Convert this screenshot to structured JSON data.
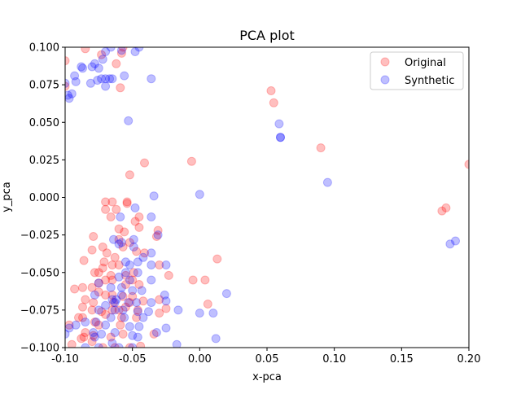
{
  "chart_data": {
    "type": "scatter",
    "title": "PCA plot",
    "xlabel": "x-pca",
    "ylabel": "y_pca",
    "xlim": [
      -0.1,
      0.2
    ],
    "ylim": [
      -0.1,
      0.1
    ],
    "x_ticks": [
      "-0.10",
      "-0.05",
      "0.00",
      "0.05",
      "0.10",
      "0.15",
      "0.20"
    ],
    "y_ticks": [
      "−0.100",
      "−0.075",
      "−0.050",
      "−0.025",
      "0.000",
      "0.025",
      "0.050",
      "0.075",
      "0.100"
    ],
    "x_tick_values": [
      -0.1,
      -0.05,
      0.0,
      0.05,
      0.1,
      0.15,
      0.2
    ],
    "y_tick_values": [
      -0.1,
      -0.075,
      -0.05,
      -0.025,
      0.0,
      0.025,
      0.05,
      0.075,
      0.1
    ],
    "legend_position": "top-right",
    "grid": false,
    "series": [
      {
        "name": "Original",
        "color": "#ff0000",
        "alpha": 0.25,
        "points": [
          [
            -0.1,
            0.091
          ],
          [
            -0.1,
            0.074
          ],
          [
            -0.085,
            0.099
          ],
          [
            -0.058,
            0.096
          ],
          [
            -0.059,
            0.073
          ],
          [
            -0.073,
            0.095
          ],
          [
            -0.057,
            0.1
          ],
          [
            -0.062,
            0.089
          ],
          [
            0.053,
            0.071
          ],
          [
            0.055,
            0.063
          ],
          [
            0.09,
            0.033
          ],
          [
            0.2,
            0.022
          ],
          [
            -0.041,
            0.023
          ],
          [
            -0.006,
            0.024
          ],
          [
            -0.052,
            0.015
          ],
          [
            -0.07,
            -0.003
          ],
          [
            -0.065,
            -0.003
          ],
          [
            -0.054,
            -0.003
          ],
          [
            -0.054,
            -0.004
          ],
          [
            -0.062,
            -0.008
          ],
          [
            -0.07,
            -0.008
          ],
          [
            -0.045,
            -0.013
          ],
          [
            -0.048,
            -0.016
          ],
          [
            -0.066,
            -0.013
          ],
          [
            -0.06,
            -0.021
          ],
          [
            -0.056,
            -0.023
          ],
          [
            -0.045,
            -0.02
          ],
          [
            -0.031,
            -0.022
          ],
          [
            -0.032,
            -0.026
          ],
          [
            -0.079,
            -0.026
          ],
          [
            -0.072,
            -0.033
          ],
          [
            -0.08,
            -0.035
          ],
          [
            -0.06,
            -0.028
          ],
          [
            -0.052,
            -0.03
          ],
          [
            -0.057,
            -0.033
          ],
          [
            -0.047,
            -0.036
          ],
          [
            -0.069,
            -0.037
          ],
          [
            -0.041,
            -0.037
          ],
          [
            -0.086,
            -0.042
          ],
          [
            -0.071,
            -0.043
          ],
          [
            -0.065,
            -0.045
          ],
          [
            -0.063,
            -0.04
          ],
          [
            -0.06,
            -0.045
          ],
          [
            -0.072,
            -0.047
          ],
          [
            -0.075,
            -0.05
          ],
          [
            -0.078,
            -0.05
          ],
          [
            -0.066,
            -0.052
          ],
          [
            -0.055,
            -0.052
          ],
          [
            -0.049,
            -0.05
          ],
          [
            -0.03,
            -0.045
          ],
          [
            -0.023,
            -0.052
          ],
          [
            -0.05,
            -0.055
          ],
          [
            -0.075,
            -0.057
          ],
          [
            -0.065,
            -0.055
          ],
          [
            -0.07,
            -0.055
          ],
          [
            -0.055,
            -0.058
          ],
          [
            -0.045,
            -0.058
          ],
          [
            0.013,
            -0.041
          ],
          [
            -0.005,
            -0.055
          ],
          [
            0.004,
            -0.055
          ],
          [
            -0.093,
            -0.061
          ],
          [
            -0.087,
            -0.06
          ],
          [
            -0.08,
            -0.06
          ],
          [
            -0.075,
            -0.063
          ],
          [
            -0.07,
            -0.065
          ],
          [
            -0.085,
            -0.068
          ],
          [
            -0.065,
            -0.065
          ],
          [
            -0.057,
            -0.066
          ],
          [
            -0.05,
            -0.066
          ],
          [
            -0.03,
            -0.068
          ],
          [
            -0.064,
            -0.07
          ],
          [
            -0.052,
            -0.07
          ],
          [
            -0.042,
            -0.069
          ],
          [
            -0.087,
            -0.073
          ],
          [
            -0.079,
            -0.07
          ],
          [
            -0.08,
            -0.075
          ],
          [
            -0.073,
            -0.076
          ],
          [
            -0.065,
            -0.075
          ],
          [
            -0.06,
            -0.075
          ],
          [
            -0.055,
            -0.073
          ],
          [
            -0.046,
            -0.075
          ],
          [
            -0.025,
            -0.074
          ],
          [
            -0.03,
            -0.077
          ],
          [
            0.006,
            -0.071
          ],
          [
            -0.09,
            -0.08
          ],
          [
            -0.087,
            -0.08
          ],
          [
            -0.078,
            -0.083
          ],
          [
            -0.07,
            -0.078
          ],
          [
            -0.058,
            -0.08
          ],
          [
            -0.047,
            -0.08
          ],
          [
            -0.075,
            -0.085
          ],
          [
            -0.059,
            -0.085
          ],
          [
            -0.097,
            -0.085
          ],
          [
            -0.085,
            -0.09
          ],
          [
            -0.086,
            -0.093
          ],
          [
            -0.079,
            -0.092
          ],
          [
            -0.088,
            -0.094
          ],
          [
            -0.066,
            -0.093
          ],
          [
            -0.057,
            -0.091
          ],
          [
            -0.034,
            -0.091
          ],
          [
            -0.095,
            -0.098
          ],
          [
            -0.08,
            -0.096
          ],
          [
            -0.072,
            -0.1
          ],
          [
            -0.063,
            -0.1
          ],
          [
            -0.052,
            -0.1
          ],
          [
            -0.044,
            -0.099
          ],
          [
            0.18,
            -0.009
          ],
          [
            0.183,
            -0.007
          ]
        ]
      },
      {
        "name": "Synthetic",
        "color": "#0000ff",
        "alpha": 0.25,
        "points": [
          [
            -0.1,
            0.076
          ],
          [
            -0.098,
            0.068
          ],
          [
            -0.097,
            0.066
          ],
          [
            -0.095,
            0.069
          ],
          [
            -0.093,
            0.081
          ],
          [
            -0.092,
            0.077
          ],
          [
            -0.088,
            0.087
          ],
          [
            -0.087,
            0.086
          ],
          [
            -0.081,
            0.076
          ],
          [
            -0.08,
            0.087
          ],
          [
            -0.078,
            0.089
          ],
          [
            -0.075,
            0.086
          ],
          [
            -0.076,
            0.078
          ],
          [
            -0.073,
            0.079
          ],
          [
            -0.07,
            0.074
          ],
          [
            -0.07,
            0.079
          ],
          [
            -0.067,
            0.079
          ],
          [
            -0.065,
            0.079
          ],
          [
            -0.072,
            0.092
          ],
          [
            -0.07,
            0.097
          ],
          [
            -0.066,
            0.1
          ],
          [
            -0.058,
            0.098
          ],
          [
            -0.056,
            0.081
          ],
          [
            -0.048,
            0.097
          ],
          [
            -0.045,
            0.1
          ],
          [
            -0.036,
            0.079
          ],
          [
            -0.053,
            0.051
          ],
          [
            0.059,
            0.049
          ],
          [
            0.06,
            0.04
          ],
          [
            0.06,
            0.04
          ],
          [
            0.095,
            0.01
          ],
          [
            -0.034,
            0.001
          ],
          [
            0.0,
            0.002
          ],
          [
            -0.048,
            -0.007
          ],
          [
            -0.059,
            -0.013
          ],
          [
            -0.036,
            -0.013
          ],
          [
            -0.049,
            -0.028
          ],
          [
            -0.031,
            -0.025
          ],
          [
            -0.064,
            -0.028
          ],
          [
            -0.058,
            -0.03
          ],
          [
            -0.06,
            -0.031
          ],
          [
            -0.049,
            -0.033
          ],
          [
            -0.036,
            -0.037
          ],
          [
            -0.042,
            -0.04
          ],
          [
            -0.046,
            -0.043
          ],
          [
            -0.055,
            -0.043
          ],
          [
            -0.052,
            -0.045
          ],
          [
            -0.036,
            -0.045
          ],
          [
            -0.025,
            -0.045
          ],
          [
            -0.055,
            -0.05
          ],
          [
            -0.046,
            -0.05
          ],
          [
            -0.06,
            -0.053
          ],
          [
            -0.052,
            -0.055
          ],
          [
            -0.036,
            -0.055
          ],
          [
            -0.075,
            -0.057
          ],
          [
            -0.078,
            -0.065
          ],
          [
            -0.066,
            -0.06
          ],
          [
            -0.058,
            -0.06
          ],
          [
            -0.065,
            -0.068
          ],
          [
            -0.062,
            -0.068
          ],
          [
            -0.058,
            -0.065
          ],
          [
            -0.05,
            -0.062
          ],
          [
            -0.043,
            -0.062
          ],
          [
            -0.026,
            -0.065
          ],
          [
            -0.063,
            -0.07
          ],
          [
            -0.053,
            -0.07
          ],
          [
            -0.047,
            -0.07
          ],
          [
            -0.036,
            -0.07
          ],
          [
            -0.025,
            -0.069
          ],
          [
            -0.07,
            -0.072
          ],
          [
            -0.075,
            -0.075
          ],
          [
            -0.063,
            -0.075
          ],
          [
            -0.057,
            -0.075
          ],
          [
            -0.046,
            -0.076
          ],
          [
            -0.038,
            -0.076
          ],
          [
            -0.016,
            -0.075
          ],
          [
            0.0,
            -0.077
          ],
          [
            0.01,
            -0.077
          ],
          [
            0.02,
            -0.064
          ],
          [
            -0.066,
            -0.08
          ],
          [
            -0.056,
            -0.08
          ],
          [
            -0.042,
            -0.08
          ],
          [
            -0.092,
            -0.085
          ],
          [
            -0.085,
            -0.083
          ],
          [
            -0.077,
            -0.083
          ],
          [
            -0.07,
            -0.085
          ],
          [
            -0.052,
            -0.086
          ],
          [
            -0.045,
            -0.086
          ],
          [
            -0.025,
            -0.087
          ],
          [
            -0.097,
            -0.087
          ],
          [
            -0.1,
            -0.091
          ],
          [
            -0.079,
            -0.09
          ],
          [
            -0.078,
            -0.093
          ],
          [
            -0.073,
            -0.091
          ],
          [
            -0.065,
            -0.097
          ],
          [
            -0.063,
            -0.09
          ],
          [
            -0.05,
            -0.092
          ],
          [
            -0.046,
            -0.093
          ],
          [
            -0.032,
            -0.09
          ],
          [
            -0.017,
            -0.098
          ],
          [
            0.012,
            -0.094
          ],
          [
            -0.075,
            -0.1
          ],
          [
            -0.06,
            -0.1
          ],
          [
            -0.05,
            -0.1
          ],
          [
            -0.085,
            -0.1
          ],
          [
            0.186,
            -0.031
          ],
          [
            0.19,
            -0.029
          ]
        ]
      }
    ]
  }
}
